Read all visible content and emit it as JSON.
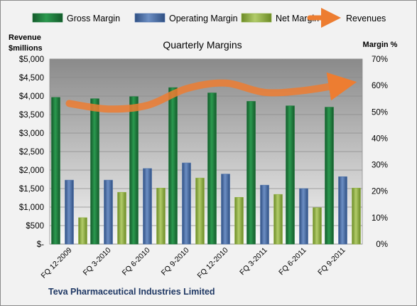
{
  "chart_data": {
    "type": "bar",
    "title": "Quarterly Margins",
    "caption": "Teva Pharmaceutical Industries Limited",
    "categories": [
      "FQ 12-2009",
      "FQ 3-2010",
      "FQ 6-2010",
      "FQ 9-2010",
      "FQ 12-2010",
      "FQ 3-2011",
      "FQ 6-2011",
      "FQ 9-2011"
    ],
    "ylabel_left_line1": "Revenue",
    "ylabel_left_line2": "$millions",
    "ylabel_right": "Margin %",
    "ylim_left": [
      0,
      5000
    ],
    "ylim_right": [
      0,
      70
    ],
    "left_ticks": [
      "$-",
      "$500",
      "$1,000",
      "$1,500",
      "$2,000",
      "$2,500",
      "$3,000",
      "$3,500",
      "$4,000",
      "$4,500",
      "$5,000"
    ],
    "right_ticks": [
      "0%",
      "10%",
      "20%",
      "30%",
      "40%",
      "50%",
      "60%",
      "70%"
    ],
    "series": [
      {
        "name": "Gross Margin",
        "axis": "right",
        "color": "#1e7a3c",
        "values": [
          55.5,
          55,
          55.8,
          59.2,
          57.2,
          54,
          52.3,
          51.8
        ]
      },
      {
        "name": "Operating Margin",
        "axis": "right",
        "color": "#4a6fa8",
        "values": [
          24.2,
          24.2,
          28.6,
          30.7,
          26.5,
          22.3,
          21,
          25.5
        ]
      },
      {
        "name": "Net Margin",
        "axis": "right",
        "color": "#8fb043",
        "values": [
          10,
          19.6,
          21.2,
          25,
          17.7,
          18.8,
          13.8,
          21.2
        ]
      },
      {
        "name": "Revenues",
        "axis": "left",
        "type": "line",
        "color": "#ed7d31",
        "values": [
          3800,
          3650,
          3750,
          4200,
          4350,
          4100,
          4150,
          4320
        ]
      }
    ],
    "legend_position": "top",
    "grid": true
  }
}
